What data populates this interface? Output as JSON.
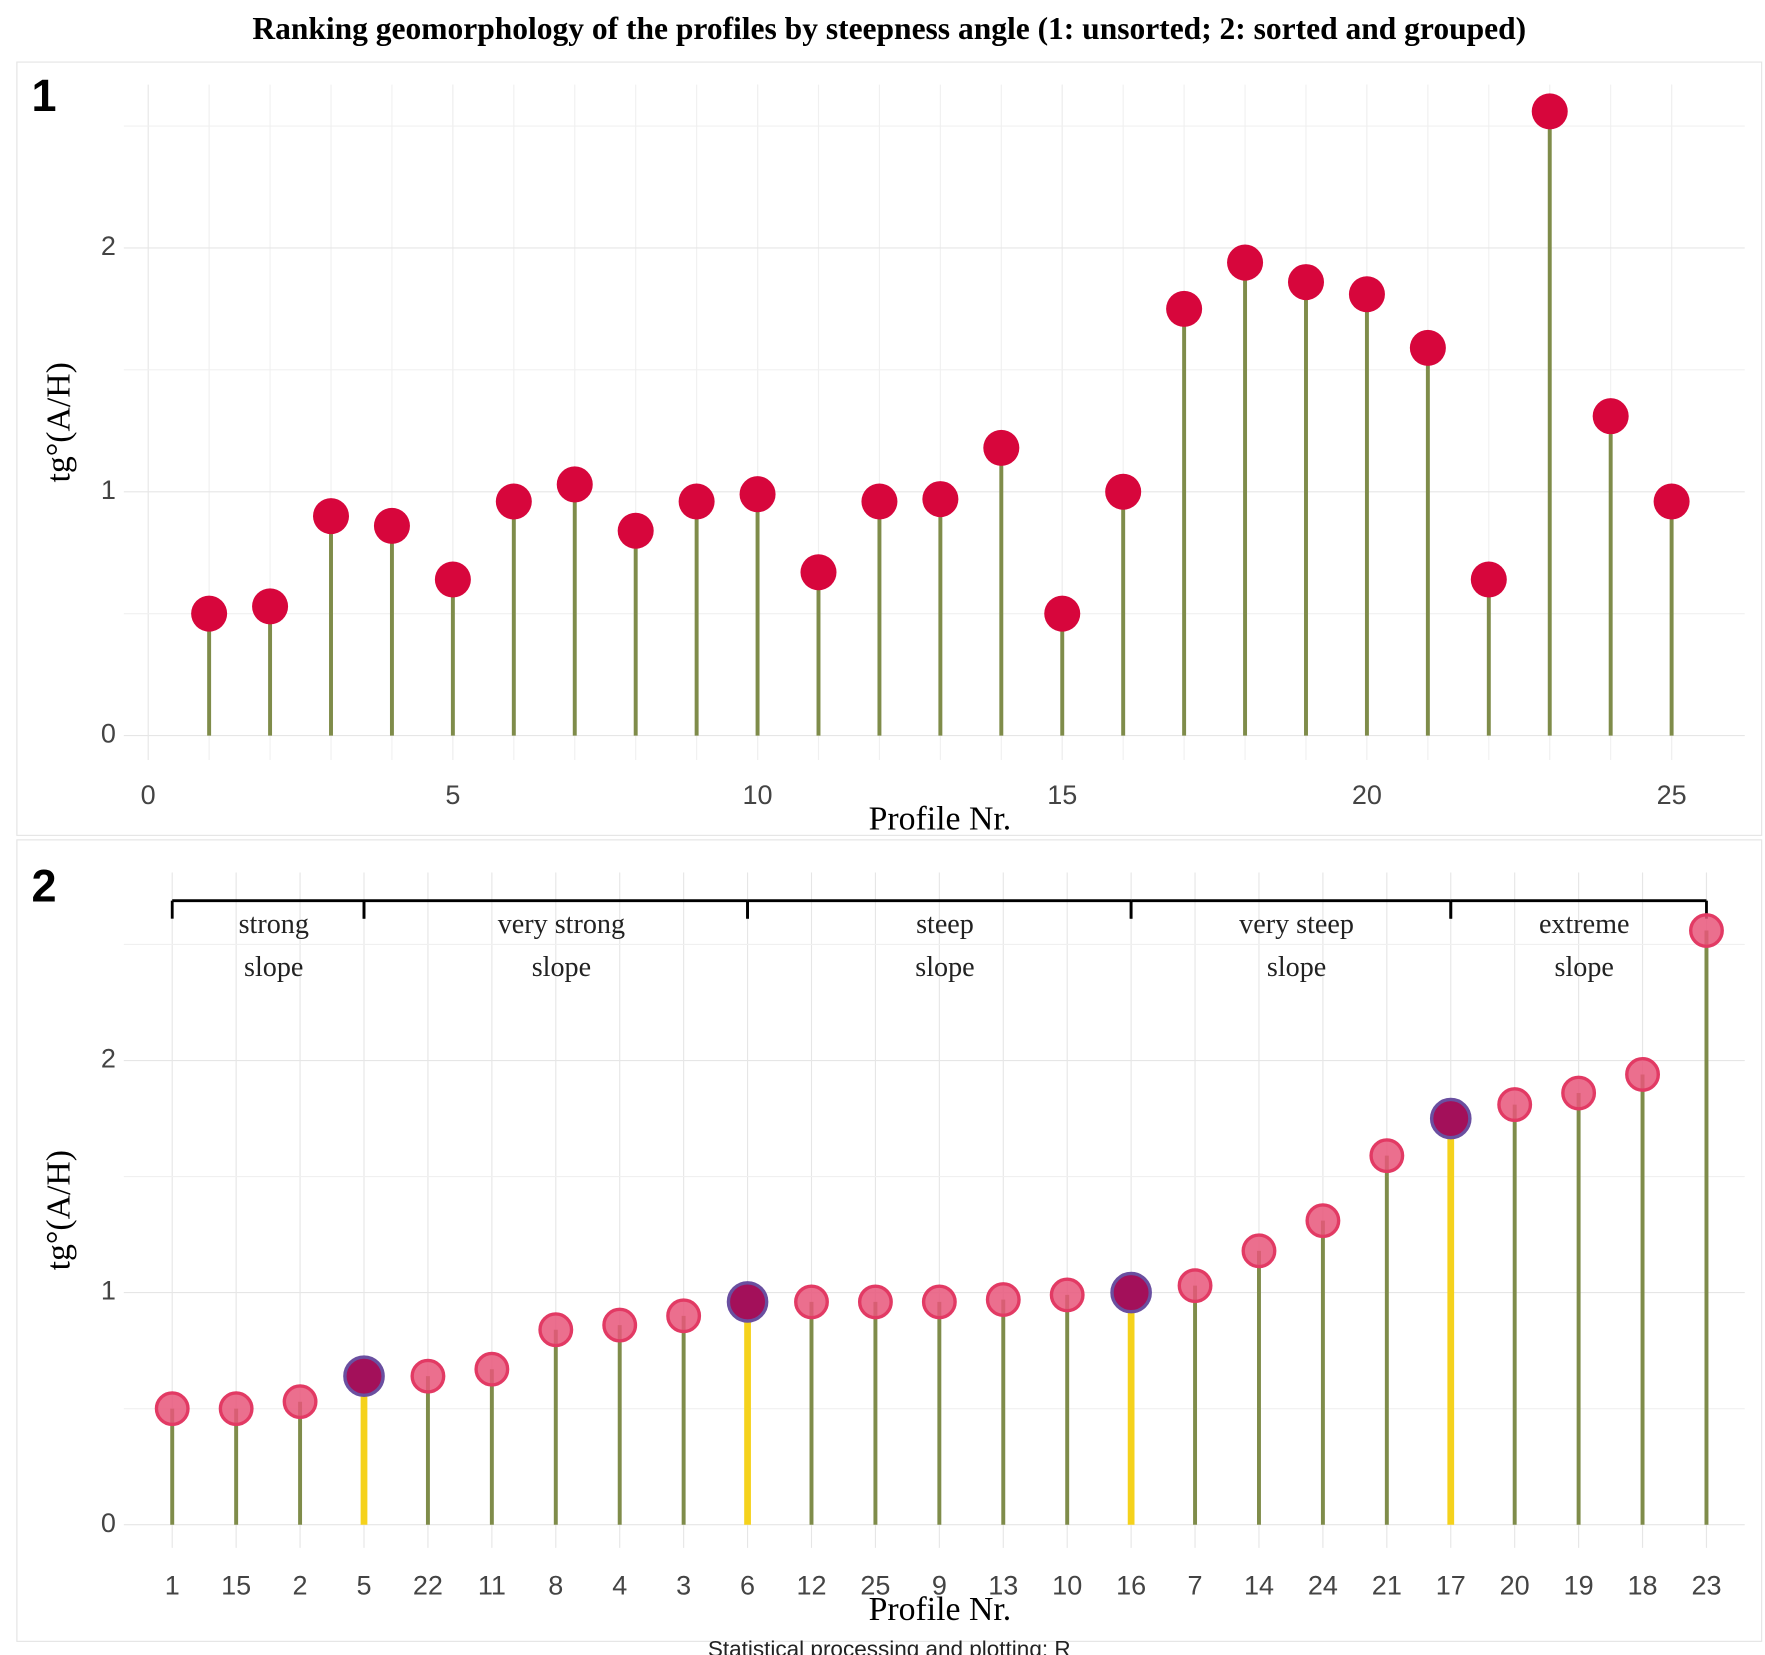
{
  "title": "Ranking geomorphology of the profiles by steepness angle (1: unsorted; 2: sorted and grouped)",
  "caption": "Statistical processing and plotting: R",
  "chart_data": [
    {
      "type": "lollipop",
      "panel_label": "1",
      "x": [
        1,
        2,
        3,
        4,
        5,
        6,
        7,
        8,
        9,
        10,
        11,
        12,
        13,
        14,
        15,
        16,
        17,
        18,
        19,
        20,
        21,
        22,
        23,
        24,
        25
      ],
      "values": [
        0.5,
        0.53,
        0.9,
        0.86,
        0.64,
        0.96,
        1.03,
        0.84,
        0.96,
        0.99,
        0.67,
        0.96,
        0.97,
        1.18,
        0.5,
        1.0,
        1.75,
        1.94,
        1.86,
        1.81,
        1.59,
        0.64,
        2.56,
        1.31,
        0.96
      ],
      "xlim": [
        -0.4,
        26.2
      ],
      "xticks": [
        0,
        5,
        10,
        15,
        20,
        25
      ],
      "ylim": [
        -0.1,
        2.67
      ],
      "yticks": [
        0,
        1,
        2
      ],
      "xlabel": "Profile Nr.",
      "ylabel": "tg°(A/H)",
      "color": "#d7063c",
      "stem_color": "#7f8c4a",
      "grid": true
    },
    {
      "type": "lollipop",
      "panel_label": "2",
      "categories": [
        "1",
        "15",
        "2",
        "5",
        "22",
        "11",
        "8",
        "4",
        "3",
        "6",
        "12",
        "25",
        "9",
        "13",
        "10",
        "16",
        "7",
        "14",
        "24",
        "21",
        "17",
        "20",
        "19",
        "18",
        "23"
      ],
      "values": [
        0.5,
        0.5,
        0.53,
        0.64,
        0.64,
        0.67,
        0.84,
        0.86,
        0.9,
        0.96,
        0.96,
        0.96,
        0.96,
        0.97,
        0.99,
        1.0,
        1.03,
        1.18,
        1.31,
        1.59,
        1.75,
        1.81,
        1.86,
        1.94,
        2.56
      ],
      "ylim": [
        -0.1,
        2.81
      ],
      "yticks": [
        0,
        1,
        2
      ],
      "xlabel": "Profile Nr.",
      "ylabel": "tg°(A/H)",
      "color": "#e8567a",
      "stem_color": "#7f8c4a",
      "boundary_color": "#f5d21c",
      "boundary_point_color": "#a3105a",
      "groups": [
        {
          "lines": [
            "strong",
            "slope"
          ],
          "start": "1",
          "end": "5"
        },
        {
          "lines": [
            "very strong",
            "slope"
          ],
          "start": "5",
          "end": "6"
        },
        {
          "lines": [
            "steep",
            "slope"
          ],
          "start": "6",
          "end": "16"
        },
        {
          "lines": [
            "very steep",
            "slope"
          ],
          "start": "16",
          "end": "17"
        },
        {
          "lines": [
            "extreme",
            "slope"
          ],
          "start": "17",
          "end": "23"
        }
      ],
      "grid": true
    }
  ]
}
